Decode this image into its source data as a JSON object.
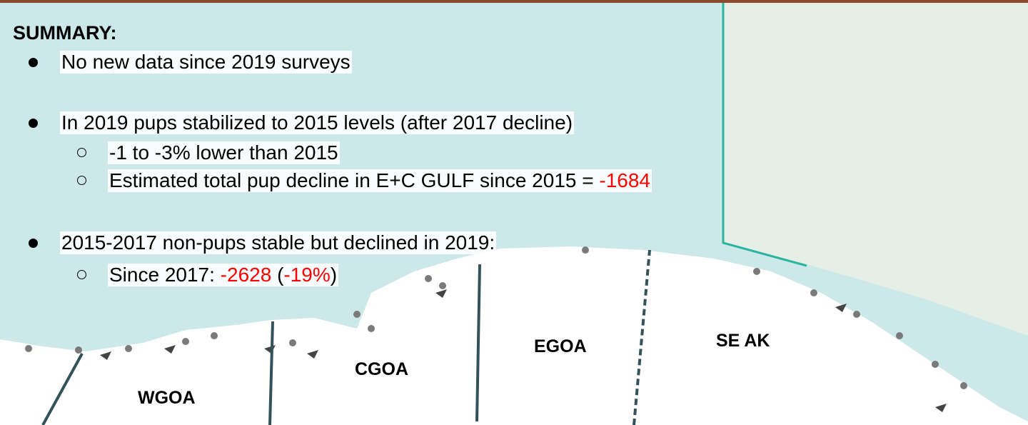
{
  "title": "SUMMARY:",
  "bullets": [
    {
      "segments": [
        {
          "text": "No new data since 2019 surveys"
        }
      ]
    },
    {
      "segments": [
        {
          "text": "In 2019 pups stabilized to 2015 levels (after 2017 decline)"
        }
      ],
      "sub": [
        {
          "segments": [
            {
              "text": "-1 to -3% lower than 2015"
            }
          ]
        },
        {
          "segments": [
            {
              "text": "Estimated total pup decline in E+C GULF since 2015 = "
            },
            {
              "text": "-1684",
              "color": "#ff0000"
            }
          ]
        }
      ]
    },
    {
      "segments": [
        {
          "text": "2015-2017 non-pups stable but declined in 2019:"
        }
      ],
      "sub": [
        {
          "segments": [
            {
              "text": "Since 2017: "
            },
            {
              "text": "-2628",
              "color": "#ff0000"
            },
            {
              "text": " ("
            },
            {
              "text": "-19%",
              "color": "#ff0000"
            },
            {
              "text": ")"
            }
          ]
        }
      ]
    }
  ],
  "regions": [
    "WGOA",
    "CGOA",
    "EGOA",
    "SE AK"
  ]
}
